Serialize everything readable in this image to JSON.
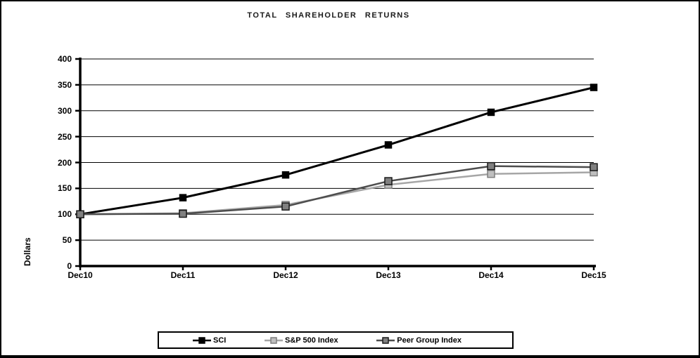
{
  "chart_data": {
    "type": "line",
    "title": "TOTAL SHAREHOLDER RETURNS",
    "xlabel": "",
    "ylabel": "Dollars",
    "categories": [
      "Dec10",
      "Dec11",
      "Dec12",
      "Dec13",
      "Dec14",
      "Dec15"
    ],
    "ylim": [
      0,
      400
    ],
    "yticks": [
      0,
      50,
      100,
      150,
      200,
      250,
      300,
      350,
      400
    ],
    "grid": true,
    "legend_position": "bottom",
    "series": [
      {
        "name": "SCI",
        "values": [
          100,
          132,
          176,
          234,
          297,
          345
        ],
        "line_color": "#000000",
        "marker_fill": "#000000",
        "marker_edge": "#000000"
      },
      {
        "name": "S&P 500 Index",
        "values": [
          100,
          102,
          118,
          157,
          178,
          181
        ],
        "line_color": "#a6a6a6",
        "marker_fill": "#bfbfbf",
        "marker_edge": "#7f7f7f"
      },
      {
        "name": "Peer Group Index",
        "values": [
          100,
          101,
          115,
          164,
          193,
          191
        ],
        "line_color": "#4d4d4d",
        "marker_fill": "#808080",
        "marker_edge": "#1a1a1a"
      }
    ]
  }
}
